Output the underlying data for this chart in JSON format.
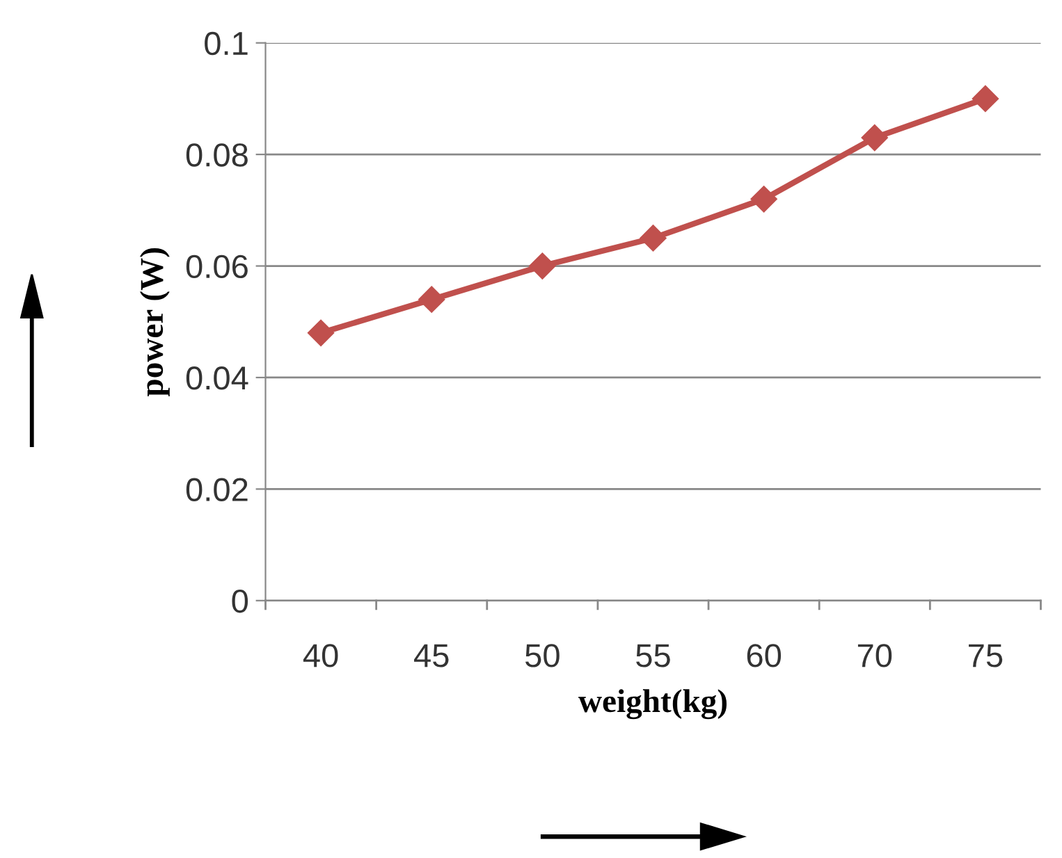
{
  "chart_data": {
    "type": "line",
    "xlabel": "weight(kg)",
    "ylabel": "power (W)",
    "categories": [
      "40",
      "45",
      "50",
      "55",
      "60",
      "70",
      "75"
    ],
    "series": [
      {
        "color": "#c0504d",
        "values": [
          0.048,
          0.054,
          0.06,
          0.065,
          0.072,
          0.083,
          0.09
        ]
      }
    ],
    "ylim": [
      0,
      0.1
    ],
    "yticks": [
      0,
      0.02,
      0.04,
      0.06,
      0.08,
      0.1
    ],
    "grid": "y",
    "marker": "diamond",
    "line_style": "solid",
    "legend": false
  }
}
